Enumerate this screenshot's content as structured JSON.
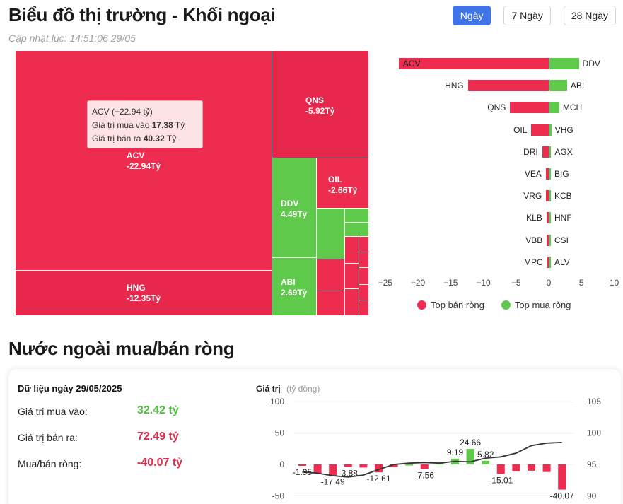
{
  "header": {
    "title": "Biểu đồ thị trường - Khối ngoại",
    "updated": "Cập nhật lúc: 14:51:06 29/05",
    "periods": [
      "Ngày",
      "7 Ngày",
      "28 Ngày"
    ],
    "active_period": "Ngày"
  },
  "treemap": {
    "tiles": [
      {
        "sym": "ACV",
        "value": "-22.94Tỷ",
        "color": "sell"
      },
      {
        "sym": "HNG",
        "value": "-12.35Tỷ",
        "color": "sell"
      },
      {
        "sym": "QNS",
        "value": "-5.92Tỷ",
        "color": "sell"
      },
      {
        "sym": "DDV",
        "value": "4.49Tỷ",
        "color": "buy"
      },
      {
        "sym": "OIL",
        "value": "-2.66Tỷ",
        "color": "sell"
      },
      {
        "sym": "ABI",
        "value": "2.69Tỷ",
        "color": "buy"
      }
    ],
    "tooltip": {
      "line1": "ACV (−22.94 tỷ)",
      "buy_label": "Giá trị mua vào",
      "buy_value": "17.38",
      "sell_label": "Giá trị bán ra",
      "sell_value": "40.32",
      "unit": "Tỷ"
    }
  },
  "top_bars": {
    "rows": [
      {
        "sell_sym": "ACV",
        "sell": -22.94,
        "buy_sym": "DDV",
        "buy": 4.49
      },
      {
        "sell_sym": "HNG",
        "sell": -12.35,
        "buy_sym": "ABI",
        "buy": 2.69
      },
      {
        "sell_sym": "QNS",
        "sell": -5.92,
        "buy_sym": "MCH",
        "buy": 1.5
      },
      {
        "sell_sym": "OIL",
        "sell": -2.66,
        "buy_sym": "VHG",
        "buy": 0.3
      },
      {
        "sell_sym": "DRI",
        "sell": -1.0,
        "buy_sym": "AGX",
        "buy": 0.25
      },
      {
        "sell_sym": "VEA",
        "sell": -0.45,
        "buy_sym": "BIG",
        "buy": 0.1
      },
      {
        "sell_sym": "VRG",
        "sell": -0.4,
        "buy_sym": "KCB",
        "buy": 0.08
      },
      {
        "sell_sym": "KLB",
        "sell": -0.35,
        "buy_sym": "HNF",
        "buy": 0.06
      },
      {
        "sell_sym": "VBB",
        "sell": -0.3,
        "buy_sym": "CSI",
        "buy": 0.05
      },
      {
        "sell_sym": "MPC",
        "sell": -0.25,
        "buy_sym": "ALV",
        "buy": 0.05
      }
    ],
    "axis_ticks": [
      "−25",
      "−20",
      "−15",
      "−10",
      "−5",
      "0",
      "5",
      "10"
    ],
    "legend": {
      "sell": "Top bán ròng",
      "buy": "Top mua ròng"
    },
    "colors": {
      "sell": "#ee2c4f",
      "buy": "#5ec94a"
    }
  },
  "foreign": {
    "title": "Nước ngoài mua/bán ròng",
    "date_label": "Dữ liệu ngày 29/05/2025",
    "buy_label": "Giá trị mua vào:",
    "buy_value": "32.42 tỷ",
    "sell_label": "Giá trị bán ra:",
    "sell_value": "72.49 tỷ",
    "net_label": "Mua/bán ròng:",
    "net_value": "-40.07 tỷ"
  },
  "chart_data": {
    "type": "bar",
    "ylabel": "Giá trị",
    "yunit": "(tỷ đồng)",
    "left_ticks": [
      "100",
      "50",
      "0",
      "-50"
    ],
    "right_ticks": [
      "105",
      "100",
      "95",
      "90"
    ],
    "bars": [
      {
        "value": -1.95,
        "label": "-1.95"
      },
      {
        "value": -14,
        "label": ""
      },
      {
        "value": -17.49,
        "label": "-17.49"
      },
      {
        "value": -3.88,
        "label": "-3.88"
      },
      {
        "value": -5,
        "label": ""
      },
      {
        "value": -12.61,
        "label": "-12.61"
      },
      {
        "value": -4,
        "label": ""
      },
      {
        "value": 0.5,
        "label": ""
      },
      {
        "value": -7.56,
        "label": "-7.56"
      },
      {
        "value": 3,
        "label": ""
      },
      {
        "value": 9.19,
        "label": "9.19"
      },
      {
        "value": 24.66,
        "label": "24.66"
      },
      {
        "value": 5.82,
        "label": "5.82"
      },
      {
        "value": -15.01,
        "label": "-15.01"
      },
      {
        "value": -11,
        "label": ""
      },
      {
        "value": -10,
        "label": ""
      },
      {
        "value": -12,
        "label": ""
      },
      {
        "value": -40.07,
        "label": "-40.07"
      }
    ],
    "line": [
      93.8,
      93.6,
      93.2,
      93.0,
      93.3,
      94.2,
      95.0,
      95.2,
      95.3,
      95.2,
      95.5,
      95.4,
      96.0,
      96.2,
      96.8,
      98.0,
      98.4,
      98.5
    ]
  }
}
